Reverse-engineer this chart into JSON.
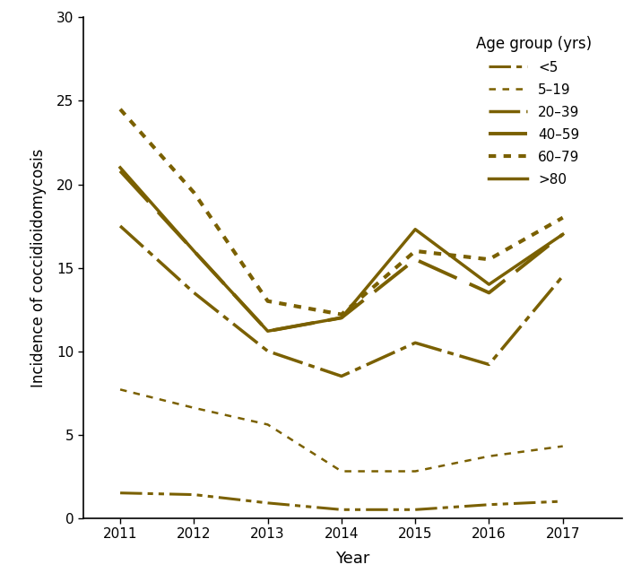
{
  "years": [
    2011,
    2012,
    2013,
    2014,
    2015,
    2016,
    2017
  ],
  "series": {
    "<5": [
      1.5,
      1.4,
      0.9,
      0.5,
      0.5,
      0.8,
      1.0
    ],
    "5-19": [
      7.7,
      6.6,
      5.6,
      2.8,
      2.8,
      3.7,
      4.3
    ],
    "20-39": [
      17.5,
      13.5,
      10.0,
      8.5,
      10.5,
      9.2,
      14.5
    ],
    "40-59": [
      20.8,
      16.0,
      11.2,
      12.0,
      15.5,
      13.5,
      17.0
    ],
    "60-79": [
      24.5,
      19.5,
      13.0,
      12.2,
      16.0,
      15.5,
      18.0
    ],
    ">80": [
      21.0,
      16.0,
      11.2,
      12.0,
      17.3,
      14.0,
      17.0
    ]
  },
  "color": "#7a6000",
  "ylabel": "Incidence of coccidioidomycosis",
  "xlabel": "Year",
  "legend_title": "Age group (yrs)",
  "ylim": [
    0,
    30
  ],
  "yticks": [
    0,
    5,
    10,
    15,
    20,
    25,
    30
  ],
  "figsize": [
    7.15,
    6.49
  ],
  "dpi": 100
}
